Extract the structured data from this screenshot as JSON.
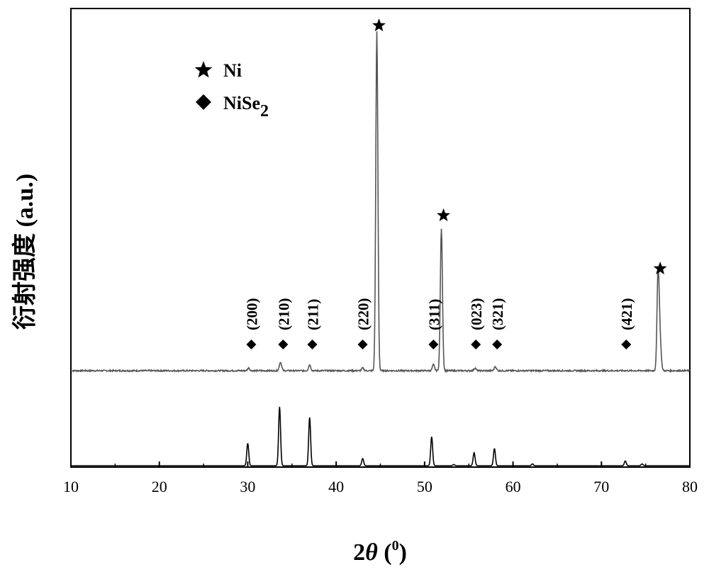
{
  "chart_data": {
    "type": "line",
    "xlabel_main": "2",
    "xlabel_theta": "θ",
    "xlabel_unit_open": " (",
    "xlabel_unit_sup": "0",
    "xlabel_unit_close": ")",
    "ylabel": "衍射强度 (a.u.)",
    "xlim": [
      10,
      80
    ],
    "xticks": [
      10,
      20,
      30,
      40,
      50,
      60,
      70,
      80
    ],
    "xtick_labels": [
      "10",
      "20",
      "30",
      "40",
      "50",
      "60",
      "70",
      "80"
    ],
    "legend": [
      {
        "marker": "star",
        "label": "Ni",
        "sub": ""
      },
      {
        "marker": "diamond",
        "label": "NiSe",
        "sub": "2"
      }
    ],
    "series": [
      {
        "kind": "measured",
        "color": "#555555",
        "baseline": 0.0,
        "noise": 0.012,
        "peaks": [
          {
            "x": 30.1,
            "h": 0.008,
            "w": 0.12
          },
          {
            "x": 33.7,
            "h": 0.025,
            "w": 0.13
          },
          {
            "x": 37.0,
            "h": 0.018,
            "w": 0.12
          },
          {
            "x": 43.0,
            "h": 0.008,
            "w": 0.12
          },
          {
            "x": 44.6,
            "h": 1.0,
            "w": 0.12
          },
          {
            "x": 51.0,
            "h": 0.018,
            "w": 0.12
          },
          {
            "x": 51.9,
            "h": 0.42,
            "w": 0.12
          },
          {
            "x": 55.7,
            "h": 0.008,
            "w": 0.12
          },
          {
            "x": 58.0,
            "h": 0.012,
            "w": 0.12
          },
          {
            "x": 76.4,
            "h": 0.27,
            "w": 0.12
          },
          {
            "x": 76.6,
            "h": 0.1,
            "w": 0.14
          }
        ]
      },
      {
        "kind": "reference",
        "color": "#000000",
        "peaks": [
          {
            "x": 30.0,
            "h": 0.38
          },
          {
            "x": 33.6,
            "h": 1.0
          },
          {
            "x": 37.0,
            "h": 0.82
          },
          {
            "x": 43.0,
            "h": 0.12
          },
          {
            "x": 50.8,
            "h": 0.49
          },
          {
            "x": 53.3,
            "h": 0.02
          },
          {
            "x": 55.6,
            "h": 0.22
          },
          {
            "x": 57.9,
            "h": 0.29
          },
          {
            "x": 62.2,
            "h": 0.03
          },
          {
            "x": 72.7,
            "h": 0.08
          },
          {
            "x": 74.6,
            "h": 0.03
          }
        ]
      }
    ],
    "ni_markers": [
      44.6,
      51.9,
      76.4
    ],
    "nise2_markers": [
      {
        "x": 30.4,
        "label": "(200)"
      },
      {
        "x": 34.0,
        "label": "(210)"
      },
      {
        "x": 37.3,
        "label": "(211)"
      },
      {
        "x": 43.0,
        "label": "(220)"
      },
      {
        "x": 51.0,
        "label": "(311)"
      },
      {
        "x": 55.8,
        "label": "(023)"
      },
      {
        "x": 58.2,
        "label": "(321)"
      },
      {
        "x": 72.8,
        "label": "(421)"
      }
    ]
  }
}
